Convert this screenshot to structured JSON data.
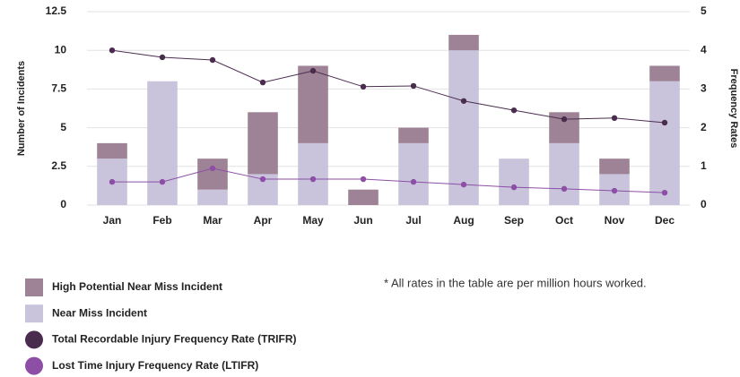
{
  "chart_data": {
    "type": "bar",
    "categories": [
      "Jan",
      "Feb",
      "Mar",
      "Apr",
      "May",
      "Jun",
      "Jul",
      "Aug",
      "Sep",
      "Oct",
      "Nov",
      "Dec"
    ],
    "series": [
      {
        "name": "High Potential Near Miss Incident",
        "color": "#9e8397",
        "values": [
          1,
          0,
          2,
          4,
          5,
          1,
          1,
          1,
          0,
          2,
          1,
          1
        ]
      },
      {
        "name": "Near Miss Incident",
        "color": "#c9c4dc",
        "values": [
          3,
          8,
          1,
          2,
          4,
          0,
          4,
          10,
          3,
          4,
          2,
          8
        ]
      },
      {
        "name": "Total Recordable Injury Frequency Rate (TRIFR)",
        "color": "#4a2d4e",
        "axis": "y2",
        "values": [
          4.0,
          3.82,
          3.75,
          3.17,
          3.47,
          3.06,
          3.08,
          2.69,
          2.45,
          2.22,
          2.25,
          2.13
        ]
      },
      {
        "name": "Lost Time Injury Frequency Rate (LTIFR)",
        "color": "#8c4fa5",
        "axis": "y2",
        "values": [
          0.6,
          0.6,
          0.95,
          0.67,
          0.67,
          0.67,
          0.6,
          0.53,
          0.46,
          0.42,
          0.37,
          0.32
        ]
      }
    ],
    "stacked": true,
    "ylabel": "Number of Incidents",
    "y2label": "Frequency Rates",
    "ylim": [
      0,
      12.5
    ],
    "yticks": [
      0,
      2.5,
      5,
      7.5,
      10,
      12.5
    ],
    "y2lim": [
      0,
      5
    ],
    "y2ticks": [
      0,
      1,
      2,
      3,
      4,
      5
    ],
    "grid": true,
    "annotation": "*  All rates in the table are per million hours worked."
  }
}
